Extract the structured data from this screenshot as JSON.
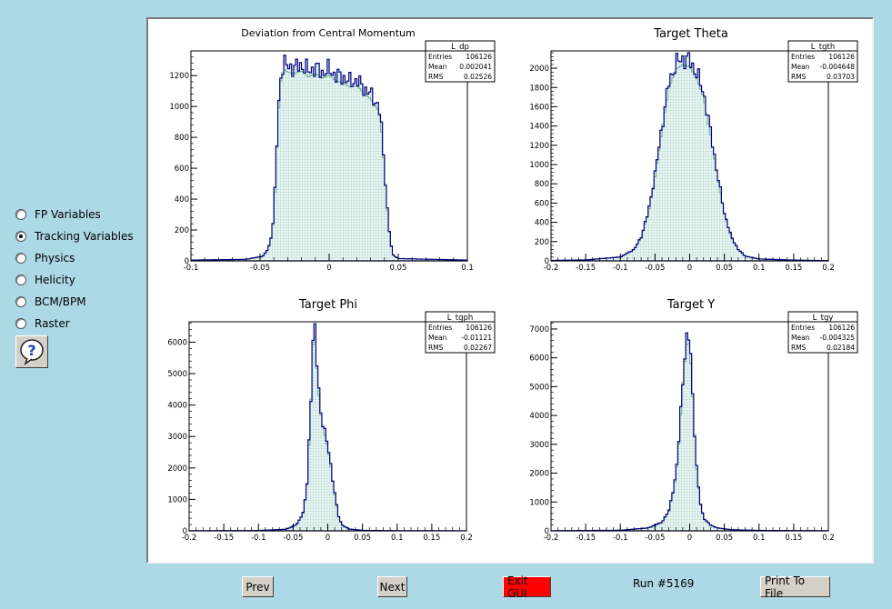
{
  "sidebar": {
    "options": [
      {
        "label": "FP Variables",
        "checked": false
      },
      {
        "label": "Tracking Variables",
        "checked": true
      },
      {
        "label": "Physics",
        "checked": false
      },
      {
        "label": "Helicity",
        "checked": false
      },
      {
        "label": "BCM/BPM",
        "checked": false
      },
      {
        "label": "Raster",
        "checked": false
      }
    ],
    "help_icon": "question-mark-balloon-icon"
  },
  "buttons": {
    "prev": "Prev",
    "next": "Next",
    "exit": "Exit GUI",
    "print": "Print To File"
  },
  "run_label": "Run #5169",
  "colors": {
    "background": "#add8e6",
    "line": "#000080",
    "fill": "#e2f3ef",
    "ref_line": "#6fae95",
    "exit_button": "#ff0000"
  },
  "chart_data": [
    {
      "type": "area",
      "title": "Deviation from Central Momentum",
      "stats": {
        "name": "L_dp",
        "rows": [
          [
            "Entries",
            "106126"
          ],
          [
            "Mean",
            "0.002041"
          ],
          [
            "RMS",
            "0.02526"
          ]
        ]
      },
      "xlim": [
        -0.1,
        0.1
      ],
      "ylim": [
        0,
        1360
      ],
      "xticks": [
        -0.1,
        -0.05,
        0,
        0.05,
        0.1
      ],
      "xtick_labels": [
        "-0.1",
        "-0.05",
        "0",
        "0.05",
        "0.1"
      ],
      "yticks": [
        200,
        400,
        600,
        800,
        1000,
        1200
      ],
      "ytick_labels": [
        "200",
        "400",
        "600",
        "800",
        "1000",
        "1200"
      ],
      "series": [
        {
          "x": [
            -0.1,
            -0.06,
            -0.048,
            -0.044,
            -0.041,
            -0.039,
            -0.037,
            -0.035,
            -0.033,
            -0.03,
            -0.025,
            -0.02,
            -0.015,
            -0.01,
            -0.005,
            0,
            0.005,
            0.01,
            0.015,
            0.02,
            0.025,
            0.03,
            0.033,
            0.036,
            0.038,
            0.04,
            0.042,
            0.044,
            0.046,
            0.05,
            0.1
          ],
          "y": [
            5,
            10,
            30,
            80,
            200,
            500,
            950,
            1200,
            1280,
            1260,
            1250,
            1270,
            1230,
            1250,
            1220,
            1240,
            1200,
            1190,
            1160,
            1170,
            1120,
            1080,
            1040,
            1000,
            850,
            600,
            350,
            150,
            40,
            15,
            5
          ]
        }
      ]
    },
    {
      "type": "area",
      "title": "Target Theta",
      "stats": {
        "name": "L_tgth",
        "rows": [
          [
            "Entries",
            "106126"
          ],
          [
            "Mean",
            "-0.004648"
          ],
          [
            "RMS",
            "0.03703"
          ]
        ]
      },
      "xlim": [
        -0.2,
        0.2
      ],
      "ylim": [
        0,
        2180
      ],
      "xticks": [
        -0.2,
        -0.15,
        -0.1,
        -0.05,
        0,
        0.05,
        0.1,
        0.15,
        0.2
      ],
      "xtick_labels": [
        "-0.2",
        "-0.15",
        "-0.1",
        "-0.05",
        "0",
        "0.05",
        "0.1",
        "0.15",
        "0.2"
      ],
      "yticks": [
        200,
        400,
        600,
        800,
        1000,
        1200,
        1400,
        1600,
        1800,
        2000
      ],
      "ytick_labels": [
        "200",
        "400",
        "600",
        "800",
        "1000",
        "1200",
        "1400",
        "1600",
        "1800",
        "2000"
      ],
      "series": [
        {
          "x": [
            -0.2,
            -0.15,
            -0.1,
            -0.08,
            -0.07,
            -0.06,
            -0.05,
            -0.04,
            -0.03,
            -0.02,
            -0.01,
            0,
            0.01,
            0.02,
            0.03,
            0.04,
            0.05,
            0.06,
            0.07,
            0.08,
            0.1,
            0.15,
            0.2
          ],
          "y": [
            5,
            10,
            40,
            120,
            250,
            500,
            900,
            1400,
            1850,
            2050,
            2100,
            2080,
            1950,
            1750,
            1350,
            900,
            500,
            250,
            120,
            50,
            20,
            8,
            3
          ]
        }
      ]
    },
    {
      "type": "area",
      "title": "Target Phi",
      "stats": {
        "name": "L_tgph",
        "rows": [
          [
            "Entries",
            "106126"
          ],
          [
            "Mean",
            "-0.01121"
          ],
          [
            "RMS",
            "0.02267"
          ]
        ]
      },
      "xlim": [
        -0.2,
        0.2
      ],
      "ylim": [
        0,
        6650
      ],
      "xticks": [
        -0.2,
        -0.15,
        -0.1,
        -0.05,
        0,
        0.05,
        0.1,
        0.15,
        0.2
      ],
      "xtick_labels": [
        "-0.2",
        "-0.15",
        "-0.1",
        "-0.05",
        "0",
        "0.05",
        "0.1",
        "0.15",
        "0.2"
      ],
      "yticks": [
        1000,
        2000,
        3000,
        4000,
        5000,
        6000
      ],
      "ytick_labels": [
        "1000",
        "2000",
        "3000",
        "4000",
        "5000",
        "6000"
      ],
      "series": [
        {
          "x": [
            -0.2,
            -0.1,
            -0.06,
            -0.045,
            -0.035,
            -0.03,
            -0.025,
            -0.022,
            -0.019,
            -0.017,
            -0.014,
            -0.01,
            -0.005,
            0,
            0.005,
            0.01,
            0.015,
            0.02,
            0.03,
            0.05,
            0.1,
            0.2
          ],
          "y": [
            3,
            10,
            50,
            200,
            600,
            1500,
            3800,
            6000,
            6500,
            5800,
            4700,
            3800,
            3200,
            2700,
            2000,
            1200,
            500,
            200,
            60,
            15,
            5,
            2
          ]
        }
      ]
    },
    {
      "type": "area",
      "title": "Target Y",
      "stats": {
        "name": "L_tgy",
        "rows": [
          [
            "Entries",
            "106126"
          ],
          [
            "Mean",
            "-0.004325"
          ],
          [
            "RMS",
            "0.02184"
          ]
        ]
      },
      "xlim": [
        -0.2,
        0.2
      ],
      "ylim": [
        0,
        7250
      ],
      "xticks": [
        -0.2,
        -0.15,
        -0.1,
        -0.05,
        0,
        0.05,
        0.1,
        0.15,
        0.2
      ],
      "xtick_labels": [
        "-0.2",
        "-0.15",
        "-0.1",
        "-0.05",
        "0",
        "0.05",
        "0.1",
        "0.15",
        "0.2"
      ],
      "yticks": [
        1000,
        2000,
        3000,
        4000,
        5000,
        6000,
        7000
      ],
      "ytick_labels": [
        "1000",
        "2000",
        "3000",
        "4000",
        "5000",
        "6000",
        "7000"
      ],
      "series": [
        {
          "x": [
            -0.2,
            -0.1,
            -0.06,
            -0.04,
            -0.03,
            -0.02,
            -0.015,
            -0.01,
            -0.005,
            -0.002,
            0,
            0.003,
            0.007,
            0.01,
            0.015,
            0.02,
            0.03,
            0.04,
            0.06,
            0.1,
            0.2
          ],
          "y": [
            5,
            20,
            100,
            300,
            700,
            1900,
            3300,
            5300,
            6600,
            6800,
            6500,
            5400,
            3500,
            2200,
            1000,
            450,
            200,
            100,
            40,
            15,
            5
          ]
        }
      ]
    }
  ]
}
